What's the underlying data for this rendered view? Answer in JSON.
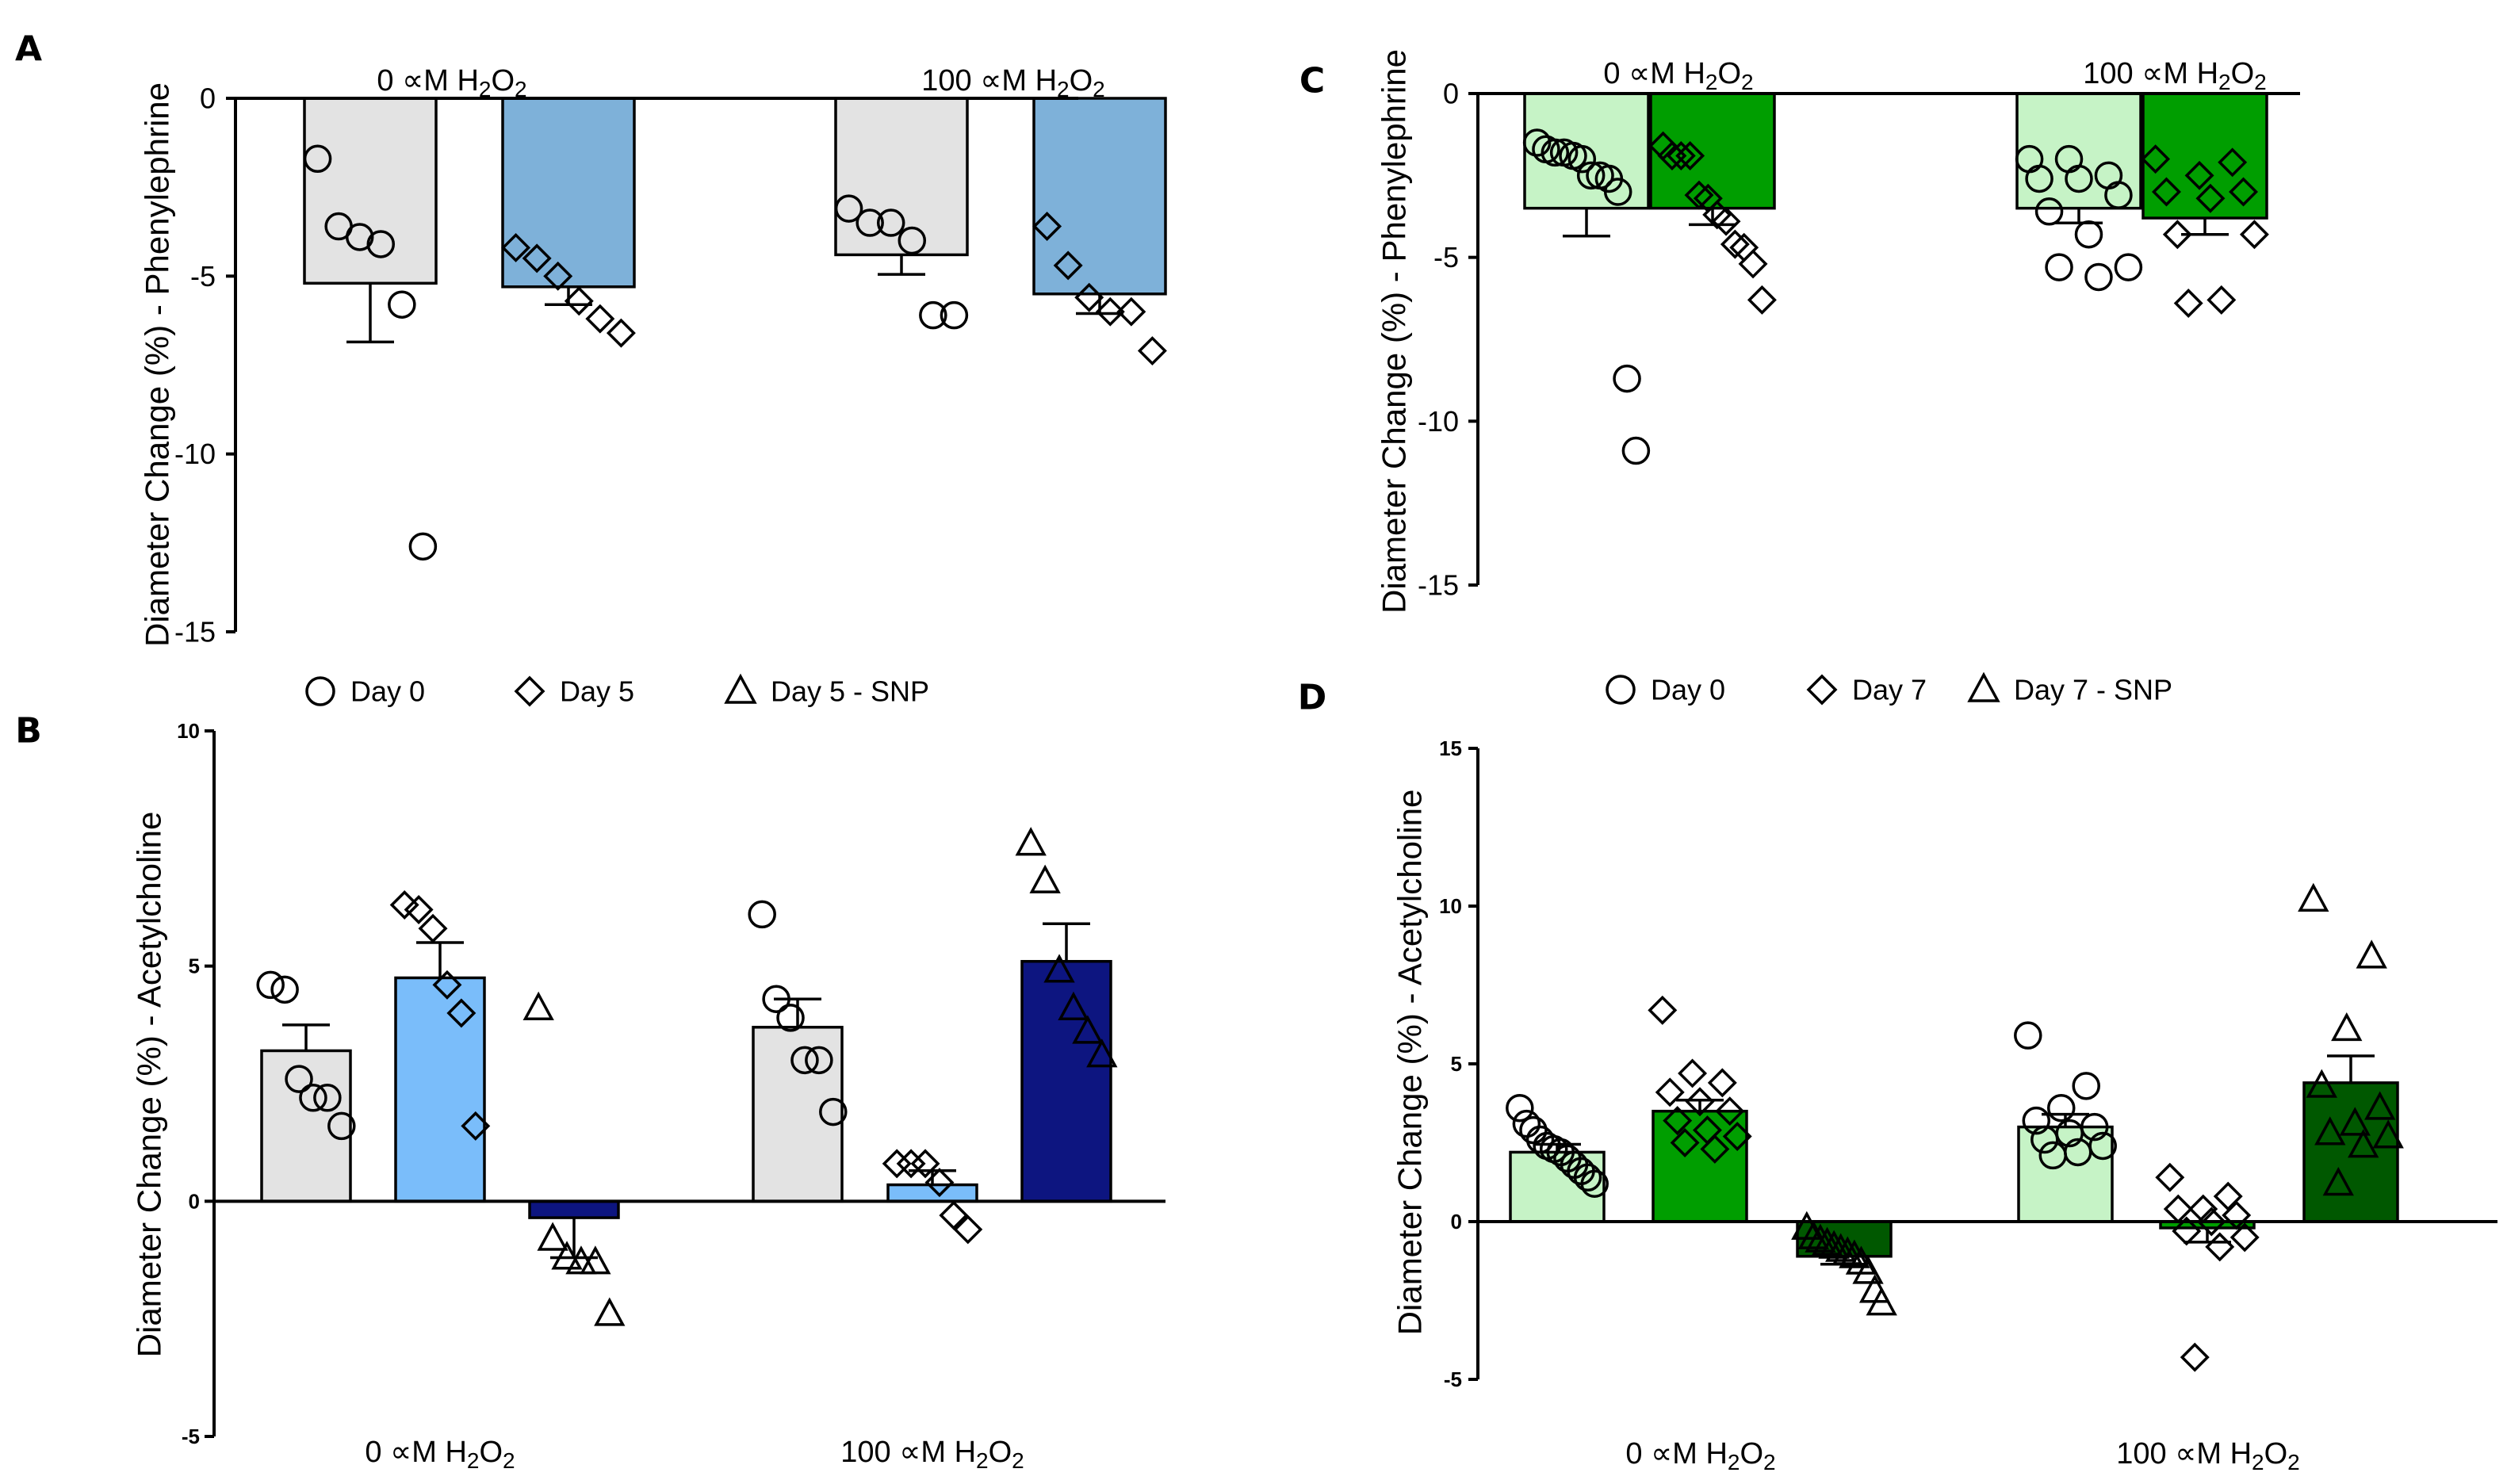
{
  "legends": {
    "top": {
      "items": [
        "Day 0",
        "Day 5",
        "Day 5 - SNP"
      ]
    },
    "right": {
      "items": [
        "Day 0",
        "Day 7",
        "Day 7 - SNP"
      ]
    }
  },
  "chart_data": [
    {
      "panel": "A",
      "type": "bar",
      "ylabel": "Diameter  Change (%) - Phenylephrine",
      "ylim": [
        -15,
        0
      ],
      "yticks": [
        "0",
        "-5",
        "-10",
        "-15"
      ],
      "groups": [
        {
          "label": "0 ∝M H2O2",
          "bars": [
            {
              "series": "Day 0",
              "color": "#e3e3e3",
              "mean": -5.2,
              "sem": 1.65,
              "marker": "circle",
              "points": [
                -1.7,
                -3.6,
                -3.9,
                -4.1,
                -5.8,
                -12.6
              ]
            },
            {
              "series": "Day 5",
              "color": "#7eb1d9",
              "mean": -5.3,
              "sem": 0.5,
              "marker": "diamond",
              "points": [
                -4.2,
                -4.5,
                -5.0,
                -5.7,
                -6.2,
                -6.6
              ]
            }
          ]
        },
        {
          "label": "100 ∝M H2O2",
          "bars": [
            {
              "series": "Day 0",
              "color": "#e3e3e3",
              "mean": -4.4,
              "sem": 0.55,
              "marker": "circle",
              "points": [
                -3.1,
                -3.5,
                -3.5,
                -4.0,
                -6.1,
                -6.1
              ]
            },
            {
              "series": "Day 5",
              "color": "#7eb1d9",
              "mean": -5.5,
              "sem": 0.55,
              "marker": "diamond",
              "points": [
                -3.6,
                -4.7,
                -5.6,
                -6.0,
                -6.0,
                -7.1
              ]
            }
          ]
        }
      ]
    },
    {
      "panel": "B",
      "type": "bar",
      "ylabel": "Diameter  Change (%) - Acetylcholine",
      "ylim": [
        -5,
        10
      ],
      "yticks": [
        "10",
        "5",
        "0",
        "-5"
      ],
      "groups": [
        {
          "label": "0 ∝M H2O2",
          "bars": [
            {
              "series": "Day 0",
              "color": "#e3e3e3",
              "mean": 3.2,
              "sem": 0.55,
              "marker": "circle",
              "points": [
                4.6,
                4.5,
                2.6,
                2.2,
                2.2,
                1.6
              ]
            },
            {
              "series": "Day 5",
              "color": "#7abdfa",
              "mean": 4.75,
              "sem": 0.75,
              "marker": "diamond",
              "points": [
                6.3,
                6.2,
                5.8,
                4.6,
                4.0,
                1.6
              ]
            },
            {
              "series": "Day 5 - SNP",
              "color": "#0d1580",
              "mean": -0.35,
              "sem": 0.85,
              "marker": "triangle",
              "points": [
                4.1,
                -0.8,
                -1.2,
                -1.3,
                -1.3,
                -2.4
              ]
            }
          ]
        },
        {
          "label": "100 ∝M H2O2",
          "bars": [
            {
              "series": "Day 0",
              "color": "#e3e3e3",
              "mean": 3.7,
              "sem": 0.6,
              "marker": "circle",
              "points": [
                6.1,
                4.3,
                3.9,
                3.0,
                3.0,
                1.9
              ]
            },
            {
              "series": "Day 5",
              "color": "#7abdfa",
              "mean": 0.35,
              "sem": 0.3,
              "marker": "diamond",
              "points": [
                0.8,
                0.8,
                0.8,
                0.4,
                -0.3,
                -0.6
              ]
            },
            {
              "series": "Day 5 - SNP",
              "color": "#0d1580",
              "mean": 5.1,
              "sem": 0.8,
              "marker": "triangle",
              "points": [
                7.6,
                6.8,
                4.9,
                4.1,
                3.6,
                3.1
              ]
            }
          ]
        }
      ]
    },
    {
      "panel": "C",
      "type": "bar",
      "ylabel": "Diameter  Change (%) - Phenylephrine",
      "ylim": [
        -15,
        0
      ],
      "yticks": [
        "0",
        "-5",
        "-10",
        "-15"
      ],
      "groups": [
        {
          "label": "0 ∝M H2O2",
          "bars": [
            {
              "series": "Day 0",
              "color": "#c6f3c6",
              "mean": -3.5,
              "sem": 0.85,
              "marker": "circle",
              "points": [
                -1.5,
                -1.7,
                -1.8,
                -1.8,
                -1.9,
                -2.0,
                -2.5,
                -2.5,
                -2.6,
                -3.0,
                -8.7,
                -10.9
              ]
            },
            {
              "series": "Day 7",
              "color": "#009e00",
              "mean": -3.5,
              "sem": 0.5,
              "marker": "diamond",
              "points": [
                -1.6,
                -1.9,
                -1.9,
                -1.9,
                -3.1,
                -3.2,
                -3.7,
                -3.9,
                -4.6,
                -4.7,
                -5.2,
                -6.3
              ]
            }
          ]
        },
        {
          "label": "100 ∝M H2O2",
          "bars": [
            {
              "series": "Day 0",
              "color": "#c6f3c6",
              "mean": -3.5,
              "sem": 0.45,
              "marker": "circle",
              "points": [
                -2.0,
                -2.0,
                -2.5,
                -2.6,
                -2.6,
                -3.1,
                -3.6,
                -4.3,
                -5.3,
                -5.3,
                -5.6
              ]
            },
            {
              "series": "Day 7",
              "color": "#009e00",
              "mean": -3.8,
              "sem": 0.5,
              "marker": "diamond",
              "points": [
                -2.0,
                -2.1,
                -2.5,
                -3.0,
                -3.0,
                -3.2,
                -4.3,
                -4.3,
                -6.3,
                -6.4
              ]
            }
          ]
        }
      ]
    },
    {
      "panel": "D",
      "type": "bar",
      "ylabel": "Diameter  Change  (%) - Acetylcholine",
      "ylim": [
        -5,
        15
      ],
      "yticks": [
        "15",
        "10",
        "5",
        "0",
        "-5"
      ],
      "groups": [
        {
          "label": "0 ∝M H2O2",
          "bars": [
            {
              "series": "Day 0",
              "color": "#c6f3c6",
              "mean": 2.2,
              "sem": 0.25,
              "marker": "circle",
              "points": [
                3.6,
                3.1,
                2.9,
                2.6,
                2.4,
                2.3,
                2.2,
                2.0,
                1.8,
                1.6,
                1.4,
                1.2
              ]
            },
            {
              "series": "Day 7",
              "color": "#009e00",
              "mean": 3.5,
              "sem": 0.35,
              "marker": "diamond",
              "points": [
                6.7,
                4.7,
                4.4,
                4.1,
                3.8,
                3.5,
                3.2,
                2.9,
                2.7,
                2.5,
                2.3
              ]
            },
            {
              "series": "Day 7 - SNP",
              "color": "#005800",
              "mean": -1.1,
              "sem": 0.25,
              "marker": "triangle",
              "points": [
                -0.2,
                -0.5,
                -0.6,
                -0.7,
                -0.8,
                -0.9,
                -1.0,
                -1.1,
                -1.3,
                -1.6,
                -2.2,
                -2.6
              ]
            }
          ]
        },
        {
          "label": "100 ∝M H2O2",
          "bars": [
            {
              "series": "Day 0",
              "color": "#c6f3c6",
              "mean": 3.0,
              "sem": 0.4,
              "marker": "circle",
              "points": [
                5.9,
                4.3,
                3.6,
                3.2,
                3.0,
                2.8,
                2.6,
                2.4,
                2.2,
                2.1
              ]
            },
            {
              "series": "Day 7",
              "color": "#009e00",
              "mean": -0.2,
              "sem": 0.45,
              "marker": "diamond",
              "points": [
                1.4,
                0.8,
                0.4,
                0.4,
                0.2,
                0.0,
                -0.3,
                -0.5,
                -0.8,
                -4.3
              ]
            },
            {
              "series": "Day 7 - SNP",
              "color": "#005800",
              "mean": 4.4,
              "sem": 0.85,
              "marker": "triangle",
              "points": [
                10.2,
                8.4,
                6.1,
                4.3,
                3.6,
                3.1,
                2.8,
                2.7,
                2.4,
                1.2
              ]
            }
          ]
        }
      ]
    }
  ]
}
